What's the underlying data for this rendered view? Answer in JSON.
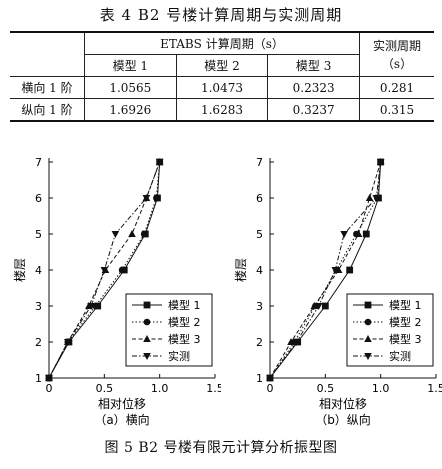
{
  "table": {
    "title": "表 4   B2 号楼计算周期与实测周期",
    "etabs_header": "ETABS 计算周期（s）",
    "measured_header_line1": "实测周期",
    "measured_header_line2": "（s）",
    "model_headers": [
      "模型 1",
      "模型 2",
      "模型 3"
    ],
    "rows": [
      {
        "label": "横向 1 阶",
        "values": [
          "1.0565",
          "1.0473",
          "0.2323",
          "0.281"
        ]
      },
      {
        "label": "纵向 1 阶",
        "values": [
          "1.6926",
          "1.6283",
          "0.3237",
          "0.315"
        ]
      }
    ]
  },
  "figure_caption": "图 5  B2 号楼有限元计算分析振型图",
  "chart_data": [
    {
      "type": "line",
      "subcaption": "（a）横向",
      "xlabel": "相对位移",
      "ylabel": "楼层",
      "xlim": [
        0,
        1.5
      ],
      "ylim": [
        1,
        7
      ],
      "xticks": [
        "0",
        "0.5",
        "1.0",
        "1.5"
      ],
      "yticks": [
        "1",
        "2",
        "3",
        "4",
        "5",
        "6",
        "7"
      ],
      "legend_position": "bottom-right",
      "series": [
        {
          "name": "模型 1",
          "marker": "square",
          "dash": "solid",
          "x": [
            0,
            0.18,
            0.44,
            0.68,
            0.87,
            0.98,
            1.0
          ],
          "y": [
            1,
            2,
            3,
            4,
            5,
            6,
            7
          ]
        },
        {
          "name": "模型 2",
          "marker": "circle",
          "dash": "dot",
          "x": [
            0,
            0.17,
            0.42,
            0.66,
            0.86,
            0.97,
            1.0
          ],
          "y": [
            1,
            2,
            3,
            4,
            5,
            6,
            7
          ]
        },
        {
          "name": "模型 3",
          "marker": "triangle-up",
          "dash": "dash",
          "x": [
            0,
            0.17,
            0.36,
            0.51,
            0.75,
            0.88,
            1.0
          ],
          "y": [
            1,
            2,
            3,
            4,
            5,
            6,
            7
          ]
        },
        {
          "name": "实测",
          "marker": "triangle-down",
          "dash": "dashdot",
          "x": [
            0,
            0.17,
            0.38,
            0.5,
            0.6,
            0.88,
            1.0
          ],
          "y": [
            1,
            2,
            3,
            4,
            5,
            6,
            7
          ]
        }
      ]
    },
    {
      "type": "line",
      "subcaption": "（b）纵向",
      "xlabel": "相对位移",
      "ylabel": "楼层",
      "xlim": [
        0,
        1.5
      ],
      "ylim": [
        1,
        7
      ],
      "xticks": [
        "0",
        "0.5",
        "1.0",
        "1.5"
      ],
      "yticks": [
        "1",
        "2",
        "3",
        "4",
        "5",
        "6",
        "7"
      ],
      "legend_position": "bottom-right",
      "series": [
        {
          "name": "模型 1",
          "marker": "square",
          "dash": "solid",
          "x": [
            0,
            0.25,
            0.5,
            0.72,
            0.87,
            0.98,
            1.0
          ],
          "y": [
            1,
            2,
            3,
            4,
            5,
            6,
            7
          ]
        },
        {
          "name": "模型 2",
          "marker": "circle",
          "dash": "dot",
          "x": [
            0,
            0.22,
            0.41,
            0.6,
            0.78,
            0.97,
            1.0
          ],
          "y": [
            1,
            2,
            3,
            4,
            5,
            6,
            7
          ]
        },
        {
          "name": "模型 3",
          "marker": "triangle-up",
          "dash": "dash",
          "x": [
            0,
            0.19,
            0.4,
            0.62,
            0.8,
            0.9,
            1.0
          ],
          "y": [
            1,
            2,
            3,
            4,
            5,
            6,
            7
          ]
        },
        {
          "name": "实测",
          "marker": "triangle-down",
          "dash": "dashdot",
          "x": [
            0,
            0.24,
            0.44,
            0.59,
            0.67,
            0.96,
            1.0
          ],
          "y": [
            1,
            2,
            3,
            4,
            5,
            6,
            7
          ]
        }
      ]
    }
  ]
}
